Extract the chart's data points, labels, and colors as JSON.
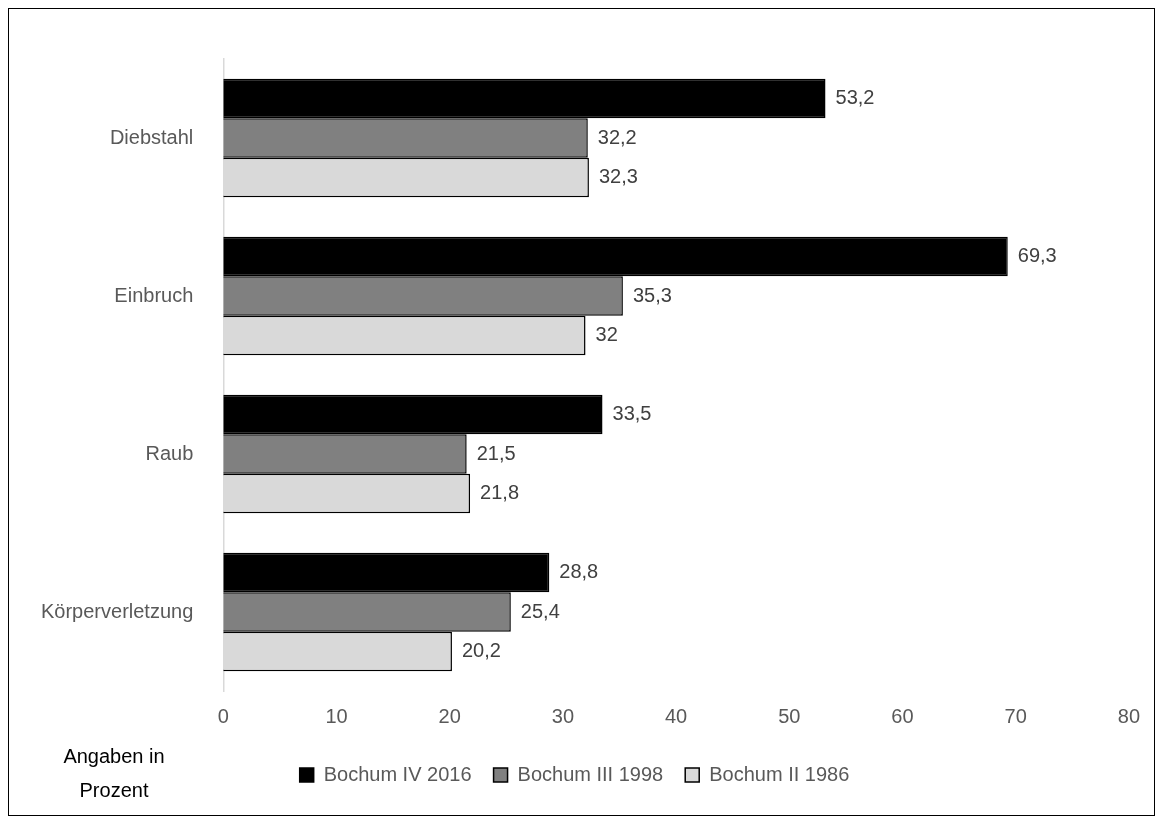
{
  "chart_data": {
    "type": "bar",
    "orientation": "horizontal",
    "categories": [
      "Diebstahl",
      "Einbruch",
      "Raub",
      "Körperverletzung"
    ],
    "series": [
      {
        "name": "Bochum IV 2016",
        "color": "#000000",
        "values": [
          53.2,
          69.3,
          33.5,
          28.8
        ],
        "value_labels": [
          "53,2",
          "69,3",
          "33,5",
          "28,8"
        ]
      },
      {
        "name": "Bochum III 1998",
        "color": "#808080",
        "values": [
          32.2,
          35.3,
          21.5,
          25.4
        ],
        "value_labels": [
          "32,2",
          "35,3",
          "21,5",
          "25,4"
        ]
      },
      {
        "name": "Bochum II 1986",
        "color": "#d9d9d9",
        "values": [
          32.3,
          32,
          21.8,
          20.2
        ],
        "value_labels": [
          "32,3",
          "32",
          "21,8",
          "20,2"
        ]
      }
    ],
    "xlim": [
      0,
      80
    ],
    "xticks": [
      0,
      10,
      20,
      30,
      40,
      50,
      60,
      70,
      80
    ],
    "grid": false,
    "legend": "bottom",
    "annotations": [
      "Angaben in Prozent"
    ]
  }
}
